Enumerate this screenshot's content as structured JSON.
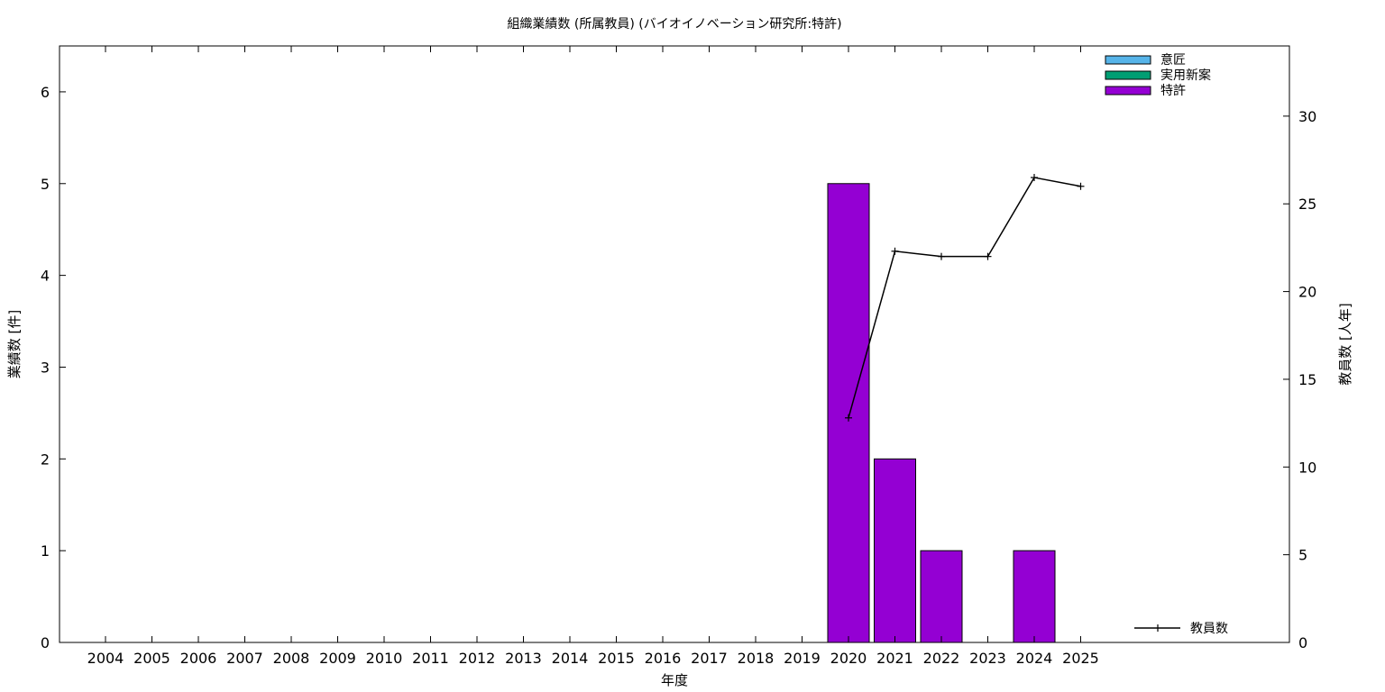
{
  "chart_data": {
    "type": "bar",
    "title": "組織業績数 (所属教員) (バイオイノベーション研究所:特許)",
    "xlabel": "年度",
    "ylabel": "業績数 [件]",
    "y2label": "教員数 [人年]",
    "categories": [
      "2004",
      "2005",
      "2006",
      "2007",
      "2008",
      "2009",
      "2010",
      "2011",
      "2012",
      "2013",
      "2014",
      "2015",
      "2016",
      "2017",
      "2018",
      "2019",
      "2020",
      "2021",
      "2022",
      "2023",
      "2024",
      "2025"
    ],
    "ylim": [
      0,
      6.5
    ],
    "y2lim": [
      0,
      34
    ],
    "yticks": [
      0,
      1,
      2,
      3,
      4,
      5,
      6
    ],
    "y2ticks": [
      0,
      5,
      10,
      15,
      20,
      25,
      30
    ],
    "series": [
      {
        "name": "意匠",
        "kind": "bar",
        "color": "#56b4e9",
        "values": [
          0,
          0,
          0,
          0,
          0,
          0,
          0,
          0,
          0,
          0,
          0,
          0,
          0,
          0,
          0,
          0,
          0,
          0,
          0,
          0,
          0,
          0
        ]
      },
      {
        "name": "実用新案",
        "kind": "bar",
        "color": "#009e73",
        "values": [
          0,
          0,
          0,
          0,
          0,
          0,
          0,
          0,
          0,
          0,
          0,
          0,
          0,
          0,
          0,
          0,
          0,
          0,
          0,
          0,
          0,
          0
        ]
      },
      {
        "name": "特許",
        "kind": "bar",
        "color": "#9400d3",
        "values": [
          0,
          0,
          0,
          0,
          0,
          0,
          0,
          0,
          0,
          0,
          0,
          0,
          0,
          0,
          0,
          0,
          5,
          2,
          1,
          0,
          1,
          0
        ]
      },
      {
        "name": "教員数",
        "kind": "line",
        "axis": "y2",
        "color": "#000000",
        "values": [
          null,
          null,
          null,
          null,
          null,
          null,
          null,
          null,
          null,
          null,
          null,
          null,
          null,
          null,
          null,
          null,
          12.8,
          22.3,
          22.0,
          22.0,
          26.5,
          26.0
        ]
      }
    ],
    "grid": false,
    "legend": "top-right"
  }
}
